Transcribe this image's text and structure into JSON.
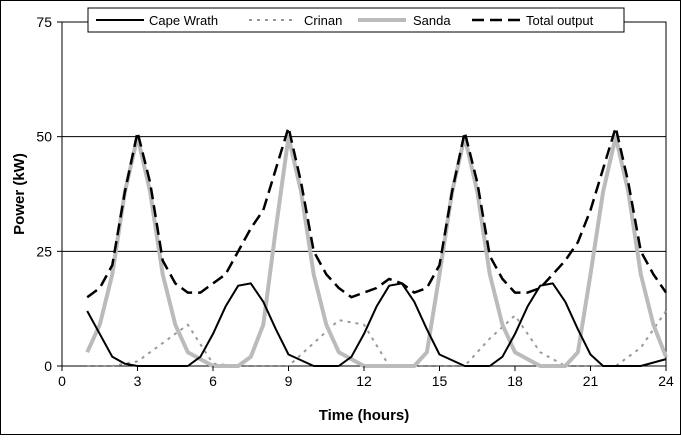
{
  "chart_data": {
    "type": "line",
    "title": "",
    "xlabel": "Time (hours)",
    "ylabel": "Power (kW)",
    "xlim": [
      0,
      24
    ],
    "ylim": [
      0,
      75
    ],
    "x_ticks": [
      0,
      3,
      6,
      9,
      12,
      15,
      18,
      21,
      24
    ],
    "y_ticks": [
      0,
      25,
      50,
      75
    ],
    "grid": "horizontal",
    "legend_position": "top",
    "series": [
      {
        "name": "Cape Wrath",
        "style": "solid",
        "color": "#000000",
        "x": [
          1,
          2,
          2.5,
          3,
          4,
          5,
          5.5,
          6,
          6.5,
          7,
          7.5,
          8,
          8.5,
          9,
          10,
          11,
          11.5,
          12,
          12.5,
          13,
          13.5,
          14,
          14.5,
          15,
          16,
          17,
          17.5,
          18,
          18.5,
          19,
          19.5,
          20,
          20.5,
          21,
          21.5,
          22,
          23,
          24
        ],
        "y": [
          12,
          2,
          0.5,
          0,
          0,
          0,
          2,
          7,
          13,
          17.5,
          18,
          14,
          8,
          2.5,
          0,
          0,
          2,
          7,
          13,
          17.5,
          18,
          14,
          8,
          2.5,
          0,
          0,
          2,
          7,
          13,
          17.5,
          18,
          14,
          8,
          2.5,
          0,
          0,
          0,
          1.5
        ]
      },
      {
        "name": "Crinan",
        "style": "dotted",
        "color": "#999999",
        "x": [
          1,
          2,
          3,
          4,
          5,
          6,
          7,
          8,
          9,
          10,
          11,
          12,
          13,
          14,
          15,
          16,
          17,
          18,
          19,
          20,
          21,
          22,
          23,
          24
        ],
        "y": [
          0,
          0,
          1,
          5,
          9,
          0.5,
          0,
          0,
          0,
          5,
          10,
          9,
          0,
          0,
          0,
          0,
          6,
          11,
          3,
          0,
          0,
          0,
          4,
          12
        ]
      },
      {
        "name": "Sanda",
        "style": "solid-thick",
        "color": "#bbbbbb",
        "x": [
          1,
          1.5,
          2,
          2.5,
          3,
          3.5,
          4,
          4.5,
          5,
          6,
          7,
          7.5,
          8,
          8.5,
          9,
          9.5,
          10,
          10.5,
          11,
          12,
          13,
          14,
          14.5,
          15,
          15.5,
          16,
          16.5,
          17,
          17.5,
          18,
          19,
          20,
          20.5,
          21,
          21.5,
          22,
          22.5,
          23,
          23.5,
          24
        ],
        "y": [
          3,
          9,
          20,
          38,
          50,
          38,
          20,
          9,
          3,
          0,
          0,
          2,
          9,
          30,
          50,
          38,
          20,
          9,
          3,
          0,
          0,
          0,
          3,
          20,
          38,
          50,
          38,
          20,
          9,
          3,
          0,
          0,
          3,
          20,
          38,
          50,
          38,
          20,
          9,
          2
        ]
      },
      {
        "name": "Total output",
        "style": "dashed",
        "color": "#000000",
        "x": [
          1,
          1.5,
          2,
          2.5,
          3,
          3.5,
          4,
          4.5,
          5,
          5.5,
          6,
          6.5,
          7,
          7.5,
          8,
          8.5,
          9,
          9.5,
          10,
          10.5,
          11,
          11.5,
          12,
          12.5,
          13,
          13.5,
          14,
          14.5,
          15,
          15.5,
          16,
          16.5,
          17,
          17.5,
          18,
          18.5,
          19,
          19.5,
          20,
          20.5,
          21,
          21.5,
          22,
          22.5,
          23,
          23.5,
          24
        ],
        "y": [
          15,
          17,
          22,
          38,
          51,
          40,
          23,
          18,
          16,
          16,
          18,
          20,
          25,
          30,
          34,
          43,
          52,
          40,
          25,
          20,
          17,
          15,
          16,
          17,
          19,
          18,
          16,
          17,
          22,
          38,
          51,
          40,
          24,
          19,
          16,
          16,
          17,
          20,
          23,
          27,
          34,
          43,
          52,
          40,
          25,
          20,
          16
        ]
      }
    ]
  }
}
